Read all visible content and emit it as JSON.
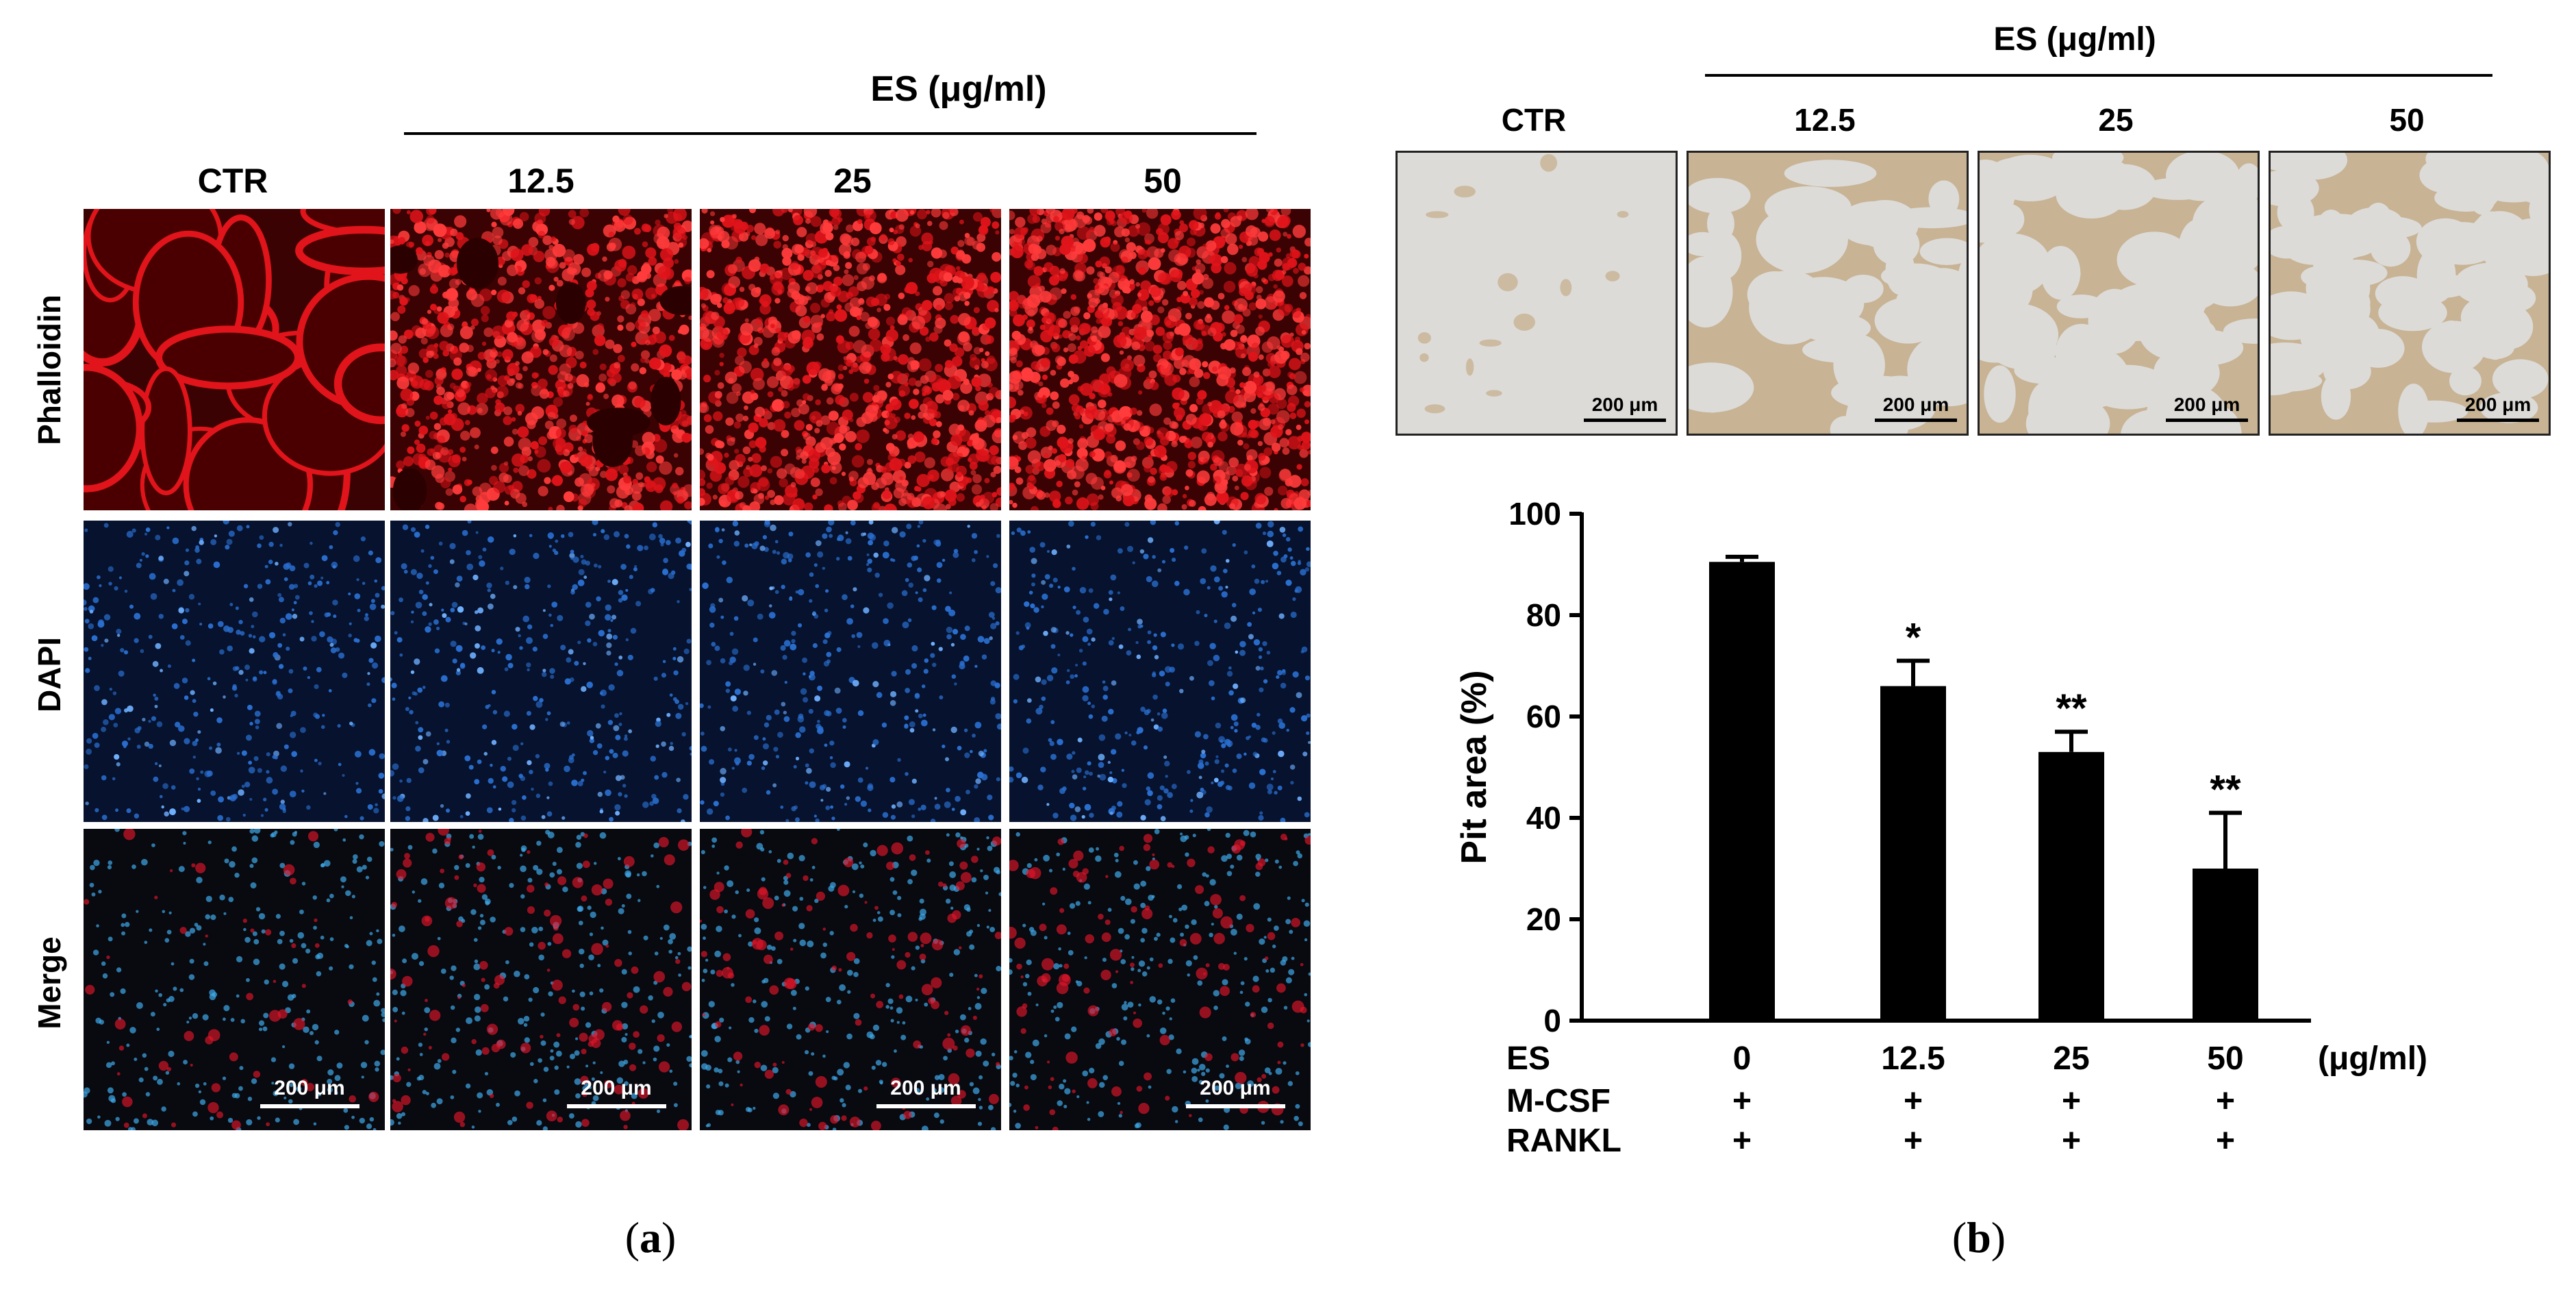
{
  "panel_a": {
    "group_label": "ES (μg/ml)",
    "columns": [
      "CTR",
      "12.5",
      "25",
      "50"
    ],
    "rows": [
      "Phalloidin",
      "DAPI",
      "Merge"
    ],
    "scale_bar": "200 μm",
    "caption_letter": "a"
  },
  "panel_b": {
    "group_label": "ES (μg/ml)",
    "columns": [
      "CTR",
      "12.5",
      "25",
      "50"
    ],
    "scale_bar": "200 μm",
    "caption_letter": "b",
    "table": {
      "rows": [
        {
          "label": "ES",
          "values": [
            "0",
            "12.5",
            "25",
            "50"
          ],
          "unit": "(μg/ml)"
        },
        {
          "label": "M-CSF",
          "values": [
            "+",
            "+",
            "+",
            "+"
          ]
        },
        {
          "label": "RANKL",
          "values": [
            "+",
            "+",
            "+",
            "+"
          ]
        }
      ]
    }
  },
  "colors": {
    "phalloidin": "#e0141a",
    "dapi": "#2a6fd0",
    "bar": "#000000",
    "pit_bg": "#d6d3cf",
    "pit_lesion": "#c8b394"
  },
  "chart_data": {
    "type": "bar",
    "categories": [
      "0",
      "12.5",
      "25",
      "50"
    ],
    "values": [
      90.5,
      66,
      53,
      30
    ],
    "errors": [
      1,
      5,
      4,
      11
    ],
    "annotations": [
      "",
      "*",
      "**",
      "**"
    ],
    "ylabel": "Pit area (%)",
    "ylim": [
      0,
      100
    ],
    "yticks": [
      0,
      20,
      40,
      60,
      80,
      100
    ],
    "grid": false
  }
}
